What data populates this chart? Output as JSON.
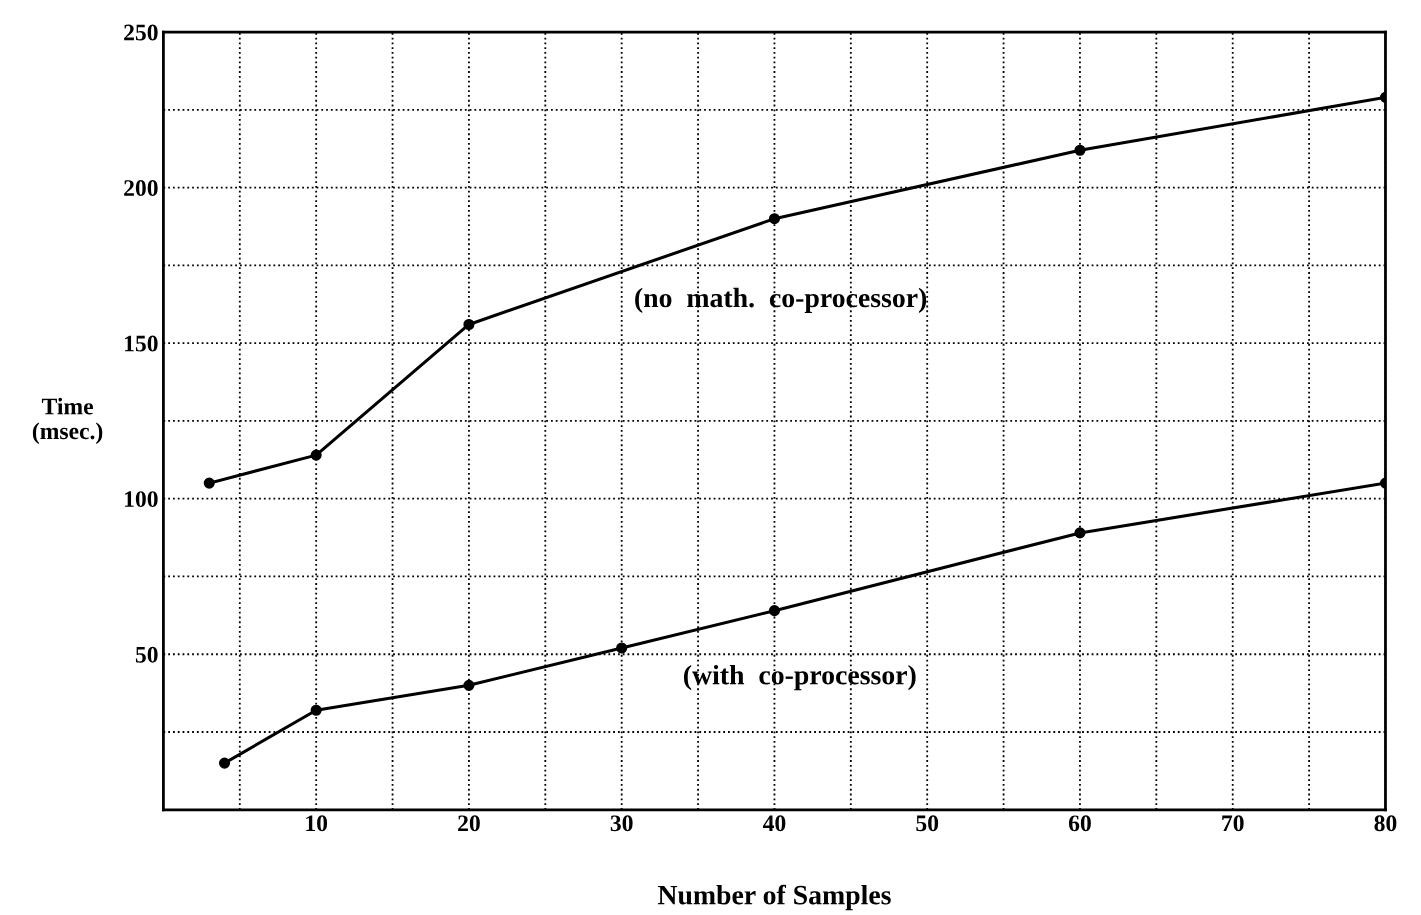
{
  "chart_data": {
    "type": "line",
    "xlabel": "Number of Samples",
    "ylabel": "Time\n(msec.)",
    "xlim": [
      0,
      80
    ],
    "ylim": [
      0,
      250
    ],
    "xticks": [
      {
        "value": 5,
        "label": null
      },
      10,
      {
        "value": 15,
        "label": null
      },
      20,
      {
        "value": 25,
        "label": null
      },
      30,
      {
        "value": 35,
        "label": null
      },
      40,
      {
        "value": 45,
        "label": null
      },
      50,
      {
        "value": 55,
        "label": null
      },
      60,
      {
        "value": 65,
        "label": null
      },
      70,
      {
        "value": 75,
        "label": null
      },
      80
    ],
    "yticks": [
      {
        "value": 25,
        "label": null
      },
      50,
      {
        "value": 75,
        "label": null
      },
      100,
      {
        "value": 125,
        "label": null
      },
      150,
      {
        "value": 175,
        "label": null
      },
      200,
      {
        "value": 225,
        "label": null
      },
      250
    ],
    "grid": true,
    "marker": "circle",
    "line_style": "solid",
    "series": [
      {
        "color": "#000000",
        "x": [
          3,
          10,
          20,
          40,
          60,
          80
        ],
        "values": [
          105,
          114,
          156,
          190,
          212,
          229
        ]
      },
      {
        "color": "#000000",
        "x": [
          4,
          10,
          20,
          30,
          40,
          60,
          80
        ],
        "values": [
          15,
          32,
          40,
          52,
          64,
          89,
          105
        ]
      }
    ],
    "annotations": [
      "(no  math.  co-processor)",
      "(with  co-processor)"
    ]
  }
}
